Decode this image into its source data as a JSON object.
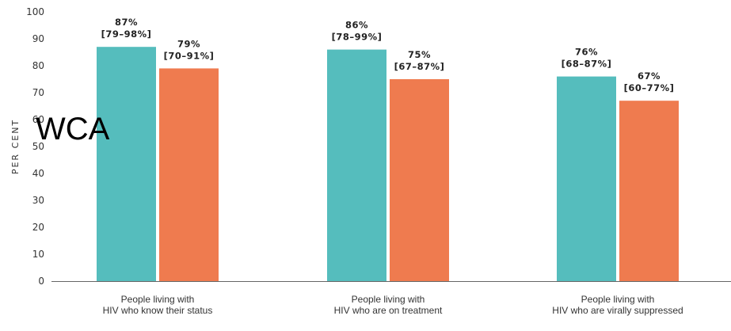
{
  "chart_data": {
    "type": "bar",
    "ylabel": "PER CENT",
    "ylim": [
      0,
      100
    ],
    "yticks": [
      0,
      10,
      20,
      30,
      40,
      50,
      60,
      70,
      80,
      90,
      100
    ],
    "grid": false,
    "categories": [
      [
        "People living with",
        "HIV who know their status"
      ],
      [
        "People living with",
        "HIV who are on treatment"
      ],
      [
        "People living with",
        "HIV who are virally suppressed"
      ]
    ],
    "series": [
      {
        "color": "#55bdbd",
        "values": [
          87,
          86,
          76
        ],
        "labels": [
          "87%",
          "86%",
          "76%"
        ],
        "ranges": [
          "[79–98%]",
          "[78–99%]",
          "[68–87%]"
        ]
      },
      {
        "color": "#ef7b4f",
        "values": [
          79,
          75,
          67
        ],
        "labels": [
          "79%",
          "75%",
          "67%"
        ],
        "ranges": [
          "[70–91%]",
          "[67–87%]",
          "[60–77%]"
        ]
      }
    ]
  },
  "overlay_text": "WCA"
}
